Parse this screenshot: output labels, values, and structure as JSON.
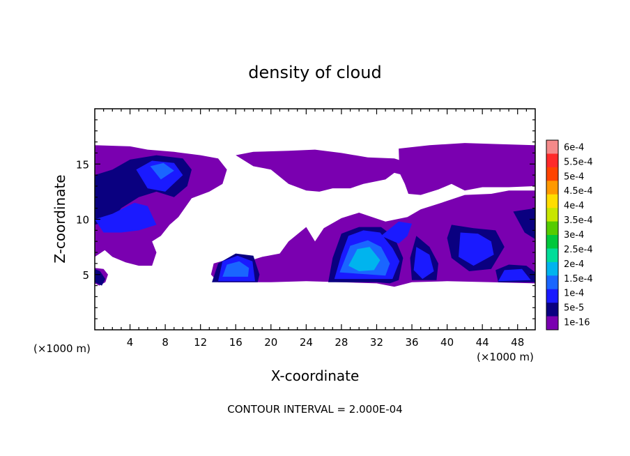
{
  "chart_data": {
    "type": "heatmap",
    "title": "density of cloud",
    "xlabel": "X-coordinate",
    "ylabel": "Z-coordinate",
    "x_unit_label": "(×1000 m)",
    "x_unit_label_right": "(×1000 m)",
    "x_ticks": [
      4,
      8,
      12,
      16,
      20,
      24,
      28,
      32,
      36,
      40,
      44,
      48
    ],
    "y_ticks": [
      5,
      10,
      15
    ],
    "xlim": [
      0,
      50
    ],
    "ylim": [
      0,
      20
    ],
    "footer": "CONTOUR INTERVAL = 2.000E-04",
    "colorbar": {
      "labels": [
        "6e-4",
        "5.5e-4",
        "5e-4",
        "4.5e-4",
        "4e-4",
        "3.5e-4",
        "3e-4",
        "2.5e-4",
        "2e-4",
        "1.5e-4",
        "1e-4",
        "5e-5",
        "1e-16"
      ],
      "colors": [
        "#f48a8a",
        "#ff2a2a",
        "#ff4400",
        "#ff9900",
        "#ffdd00",
        "#c8e600",
        "#55cc00",
        "#00c83c",
        "#00dd99",
        "#00b4ee",
        "#1a66ff",
        "#1a1aff",
        "#0a0080",
        "#7a00b0"
      ]
    },
    "regions": [
      {
        "level": 0,
        "polygons": [
          [
            [
              0,
              16.7
            ],
            [
              4,
              16.6
            ],
            [
              6,
              16.3
            ],
            [
              9,
              16.1
            ],
            [
              12,
              15.8
            ],
            [
              14,
              15.5
            ],
            [
              15,
              14.5
            ],
            [
              14.5,
              13.2
            ],
            [
              13,
              12.5
            ],
            [
              11,
              11.9
            ],
            [
              9.5,
              10.2
            ],
            [
              8.5,
              9.5
            ],
            [
              7.5,
              8.5
            ],
            [
              6.5,
              8
            ],
            [
              7,
              7
            ],
            [
              6.5,
              5.8
            ],
            [
              5,
              5.8
            ],
            [
              3.5,
              6.1
            ],
            [
              2,
              6.6
            ],
            [
              1,
              7.3
            ],
            [
              0,
              7.3
            ]
          ],
          [
            [
              0,
              5.6
            ],
            [
              1,
              5.5
            ],
            [
              1.5,
              5
            ],
            [
              1.2,
              4.3
            ],
            [
              0.5,
              4
            ],
            [
              0,
              4.2
            ]
          ],
          [
            [
              14.8,
              6.3
            ],
            [
              17,
              6.1
            ],
            [
              19,
              6.6
            ],
            [
              21,
              6.9
            ],
            [
              22,
              8
            ],
            [
              24,
              9.3
            ],
            [
              25,
              8
            ],
            [
              26,
              9.2
            ],
            [
              28,
              10.1
            ],
            [
              30,
              10.6
            ],
            [
              33,
              9.8
            ],
            [
              35.5,
              10.2
            ],
            [
              37,
              10.9
            ],
            [
              39,
              11.4
            ],
            [
              42,
              12.2
            ],
            [
              45,
              12.3
            ],
            [
              47,
              12.6
            ],
            [
              50,
              12.6
            ],
            [
              50,
              4.2
            ],
            [
              45,
              4.3
            ],
            [
              40,
              4.4
            ],
            [
              36,
              4.3
            ],
            [
              34,
              3.9
            ],
            [
              32,
              4.2
            ],
            [
              28,
              4.3
            ],
            [
              24,
              4.4
            ],
            [
              20,
              4.3
            ],
            [
              17,
              4.3
            ],
            [
              14,
              4.3
            ],
            [
              13.2,
              5
            ],
            [
              13.5,
              6
            ]
          ],
          [
            [
              16,
              15.8
            ],
            [
              18,
              16.1
            ],
            [
              22,
              16.2
            ],
            [
              25,
              16.3
            ],
            [
              28,
              16
            ],
            [
              31,
              15.6
            ],
            [
              34,
              15.5
            ],
            [
              36,
              15
            ],
            [
              37,
              14.4
            ],
            [
              36,
              13.8
            ],
            [
              34,
              14.2
            ],
            [
              33,
              13.6
            ],
            [
              30.5,
              13.2
            ],
            [
              29,
              12.8
            ],
            [
              27,
              12.8
            ],
            [
              25.5,
              12.5
            ],
            [
              24,
              12.6
            ],
            [
              22,
              13.2
            ],
            [
              20,
              14.5
            ],
            [
              18,
              14.8
            ]
          ],
          [
            [
              34.5,
              16.4
            ],
            [
              38,
              16.7
            ],
            [
              42,
              16.9
            ],
            [
              46,
              16.8
            ],
            [
              50,
              16.7
            ],
            [
              50,
              13
            ],
            [
              47,
              12.9
            ],
            [
              44,
              12.9
            ],
            [
              42,
              12.6
            ],
            [
              40.5,
              13.2
            ],
            [
              39,
              12.7
            ],
            [
              37,
              12.2
            ],
            [
              35.6,
              12.3
            ],
            [
              35.2,
              13.2
            ],
            [
              34.6,
              14.2
            ]
          ],
          [
            [
              0,
              6.6
            ],
            [
              1.5,
              7.4
            ],
            [
              3,
              8
            ],
            [
              2,
              9
            ],
            [
              0,
              9.4
            ]
          ]
        ]
      },
      {
        "level": 1,
        "polygons": [
          [
            [
              0,
              9.5
            ],
            [
              2,
              10
            ],
            [
              3,
              11
            ],
            [
              5,
              12
            ],
            [
              7,
              12.5
            ],
            [
              9,
              12
            ],
            [
              10.5,
              13
            ],
            [
              11,
              14.5
            ],
            [
              10,
              15.5
            ],
            [
              7,
              15.8
            ],
            [
              4,
              15.4
            ],
            [
              2,
              14.5
            ],
            [
              0,
              14
            ]
          ],
          [
            [
              13.3,
              4.3
            ],
            [
              14,
              6
            ],
            [
              16,
              6.9
            ],
            [
              18,
              6.7
            ],
            [
              18.7,
              5
            ],
            [
              18.5,
              4.3
            ]
          ],
          [
            [
              26.5,
              4.3
            ],
            [
              27,
              6.5
            ],
            [
              28,
              8.7
            ],
            [
              30,
              9.3
            ],
            [
              32.5,
              9.3
            ],
            [
              34,
              8.4
            ],
            [
              35,
              6.5
            ],
            [
              34.5,
              4.5
            ],
            [
              33.5,
              4.2
            ],
            [
              32,
              4.3
            ]
          ],
          [
            [
              36.5,
              8.5
            ],
            [
              38,
              7.5
            ],
            [
              39,
              6
            ],
            [
              38.8,
              4.5
            ],
            [
              36,
              4.5
            ],
            [
              35.8,
              6.5
            ]
          ],
          [
            [
              40.5,
              9.5
            ],
            [
              43,
              9.2
            ],
            [
              45.5,
              9
            ],
            [
              46.5,
              7.5
            ],
            [
              45,
              5.5
            ],
            [
              42.5,
              5.3
            ],
            [
              40.5,
              6.5
            ],
            [
              40,
              8.3
            ]
          ],
          [
            [
              45.5,
              5.4
            ],
            [
              47,
              5.9
            ],
            [
              49,
              5.8
            ],
            [
              50,
              5.2
            ],
            [
              50,
              4.3
            ],
            [
              45.8,
              4.3
            ]
          ],
          [
            [
              0,
              4.3
            ],
            [
              0.8,
              4
            ],
            [
              1.2,
              4.6
            ],
            [
              0.6,
              5.3
            ],
            [
              0,
              5.5
            ]
          ],
          [
            [
              47.5,
              10.7
            ],
            [
              50,
              11
            ],
            [
              50,
              8.2
            ],
            [
              48.8,
              8.8
            ]
          ]
        ]
      },
      {
        "level": 2,
        "polygons": [
          [
            [
              0,
              10
            ],
            [
              2,
              10.5
            ],
            [
              4.5,
              11.5
            ],
            [
              6,
              11.2
            ],
            [
              7,
              9.5
            ],
            [
              5,
              9
            ],
            [
              3,
              8.8
            ],
            [
              1,
              8.8
            ]
          ],
          [
            [
              4.7,
              14.5
            ],
            [
              6.5,
              15.3
            ],
            [
              9,
              15.1
            ],
            [
              10,
              14
            ],
            [
              8,
              12.5
            ],
            [
              6,
              12.8
            ]
          ],
          [
            [
              14,
              4.4
            ],
            [
              14.5,
              6.2
            ],
            [
              16.2,
              6.7
            ],
            [
              17.9,
              6.2
            ],
            [
              18.2,
              4.4
            ]
          ],
          [
            [
              27.2,
              4.6
            ],
            [
              28,
              6.8
            ],
            [
              28.8,
              8.5
            ],
            [
              30.5,
              9
            ],
            [
              32.4,
              8.8
            ],
            [
              33.8,
              7.4
            ],
            [
              34.6,
              6.2
            ],
            [
              33.8,
              4.6
            ]
          ],
          [
            [
              32.5,
              8.5
            ],
            [
              34.5,
              9.8
            ],
            [
              36,
              9.6
            ],
            [
              35.5,
              8.5
            ],
            [
              34.5,
              7.8
            ]
          ],
          [
            [
              36.5,
              7.5
            ],
            [
              38,
              6.8
            ],
            [
              38.5,
              5.3
            ],
            [
              37.2,
              4.6
            ],
            [
              36.2,
              5.4
            ]
          ],
          [
            [
              41.5,
              8.8
            ],
            [
              43.5,
              8.7
            ],
            [
              45,
              8
            ],
            [
              45.3,
              6.8
            ],
            [
              43,
              5.8
            ],
            [
              41.3,
              6.6
            ]
          ],
          [
            [
              45.8,
              4.4
            ],
            [
              46.5,
              5.4
            ],
            [
              48.5,
              5.5
            ],
            [
              49.5,
              4.5
            ]
          ]
        ]
      },
      {
        "level": 3,
        "polygons": [
          [
            [
              14.5,
              4.8
            ],
            [
              15,
              5.9
            ],
            [
              16.4,
              6.2
            ],
            [
              17.5,
              5.6
            ],
            [
              17.4,
              4.8
            ]
          ],
          [
            [
              27.8,
              5.2
            ],
            [
              29,
              7.6
            ],
            [
              31,
              8.1
            ],
            [
              32.5,
              7.5
            ],
            [
              33.5,
              6
            ],
            [
              33,
              4.9
            ]
          ],
          [
            [
              6.3,
              14.8
            ],
            [
              7.8,
              15.1
            ],
            [
              9,
              14.4
            ],
            [
              7.5,
              13.6
            ]
          ]
        ]
      },
      {
        "level": 4,
        "polygons": [
          [
            [
              28.8,
              5.8
            ],
            [
              29.8,
              7.3
            ],
            [
              31.2,
              7.5
            ],
            [
              32.4,
              6.3
            ],
            [
              31.7,
              5.4
            ],
            [
              30,
              5.3
            ]
          ]
        ]
      }
    ]
  }
}
